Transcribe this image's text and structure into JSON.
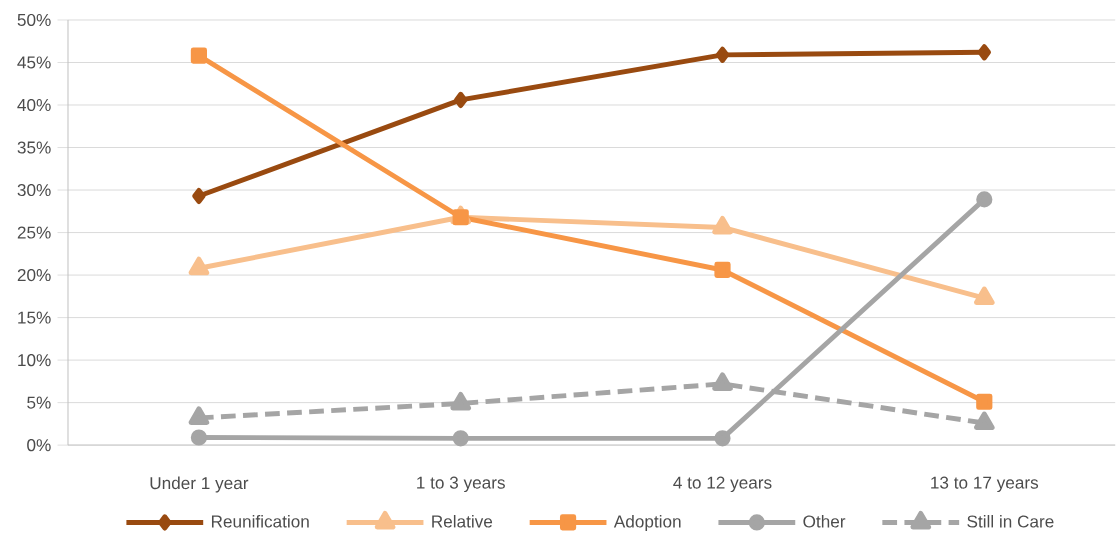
{
  "chart_data": {
    "type": "line",
    "categories": [
      "Under 1 year",
      "1 to 3 years",
      "4 to 12 years",
      "13 to 17 years"
    ],
    "series": [
      {
        "name": "Reunification",
        "color": "#994a10",
        "marker": "diamond",
        "line_style": "solid",
        "values": [
          29.3,
          40.6,
          45.9,
          46.2
        ]
      },
      {
        "name": "Relative",
        "color": "#f8bf8c",
        "marker": "triangle",
        "line_style": "solid",
        "values": [
          20.8,
          26.8,
          25.6,
          17.3
        ]
      },
      {
        "name": "Adoption",
        "color": "#f79646",
        "marker": "square",
        "line_style": "solid",
        "values": [
          45.8,
          26.8,
          20.6,
          5.1
        ]
      },
      {
        "name": "Other",
        "color": "#a5a5a5",
        "marker": "circle",
        "line_style": "solid",
        "values": [
          0.9,
          0.8,
          0.8,
          28.9
        ]
      },
      {
        "name": "Still in Care",
        "color": "#a5a5a5",
        "marker": "triangle",
        "line_style": "dashed",
        "values": [
          3.2,
          4.9,
          7.2,
          2.6
        ]
      }
    ],
    "ylim": [
      0,
      50
    ],
    "yticks": [
      {
        "value": 0,
        "label": "0%"
      },
      {
        "value": 5,
        "label": "5%"
      },
      {
        "value": 10,
        "label": "10%"
      },
      {
        "value": 15,
        "label": "15%"
      },
      {
        "value": 20,
        "label": "20%"
      },
      {
        "value": 25,
        "label": "25%"
      },
      {
        "value": 30,
        "label": "30%"
      },
      {
        "value": 35,
        "label": "35%"
      },
      {
        "value": 40,
        "label": "40%"
      },
      {
        "value": 45,
        "label": "45%"
      },
      {
        "value": 50,
        "label": "50%"
      }
    ],
    "grid": "y",
    "legend": "bottom"
  }
}
